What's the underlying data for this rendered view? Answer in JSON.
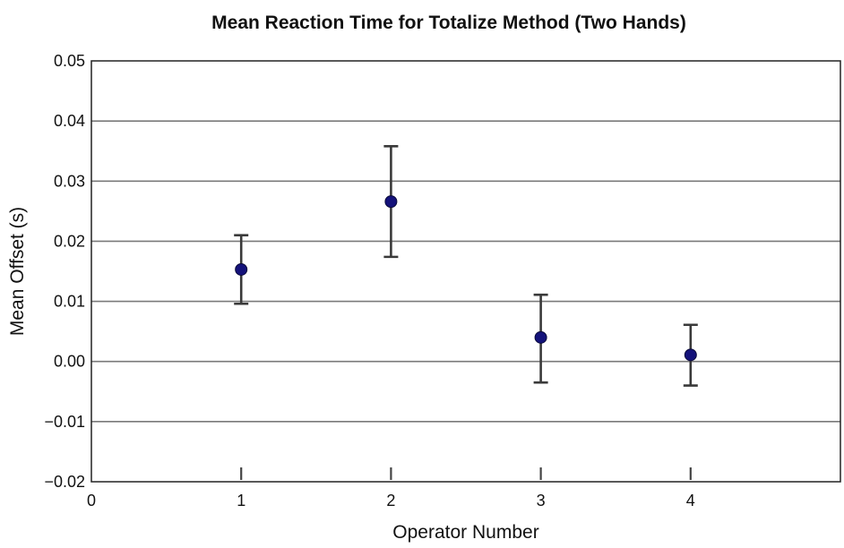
{
  "chart_data": {
    "type": "scatter",
    "title": "Mean Reaction Time for Totalize Method (Two Hands)",
    "xlabel": "Operator Number",
    "ylabel": "Mean Offset (s)",
    "xlim": [
      0,
      5
    ],
    "ylim": [
      -0.02,
      0.05
    ],
    "x_ticks": [
      0,
      1,
      2,
      3,
      4
    ],
    "x_tick_labels": [
      "0",
      "1",
      "2",
      "3",
      "4"
    ],
    "y_ticks": [
      -0.02,
      -0.01,
      0.0,
      0.01,
      0.02,
      0.03,
      0.04,
      0.05
    ],
    "y_tick_labels": [
      "−0.02",
      "−0.01",
      "0.00",
      "0.01",
      "0.02",
      "0.03",
      "0.04",
      "0.05"
    ],
    "grid": "horizontal",
    "legend": "none",
    "series": [
      {
        "x": [
          1,
          2,
          3,
          4
        ],
        "y": [
          0.0153,
          0.0266,
          0.004,
          0.0011
        ],
        "error_low": [
          0.0096,
          0.0174,
          -0.0035,
          -0.004
        ],
        "error_high": [
          0.021,
          0.0358,
          0.0111,
          0.0061
        ],
        "marker_color": "#14127a"
      }
    ]
  }
}
